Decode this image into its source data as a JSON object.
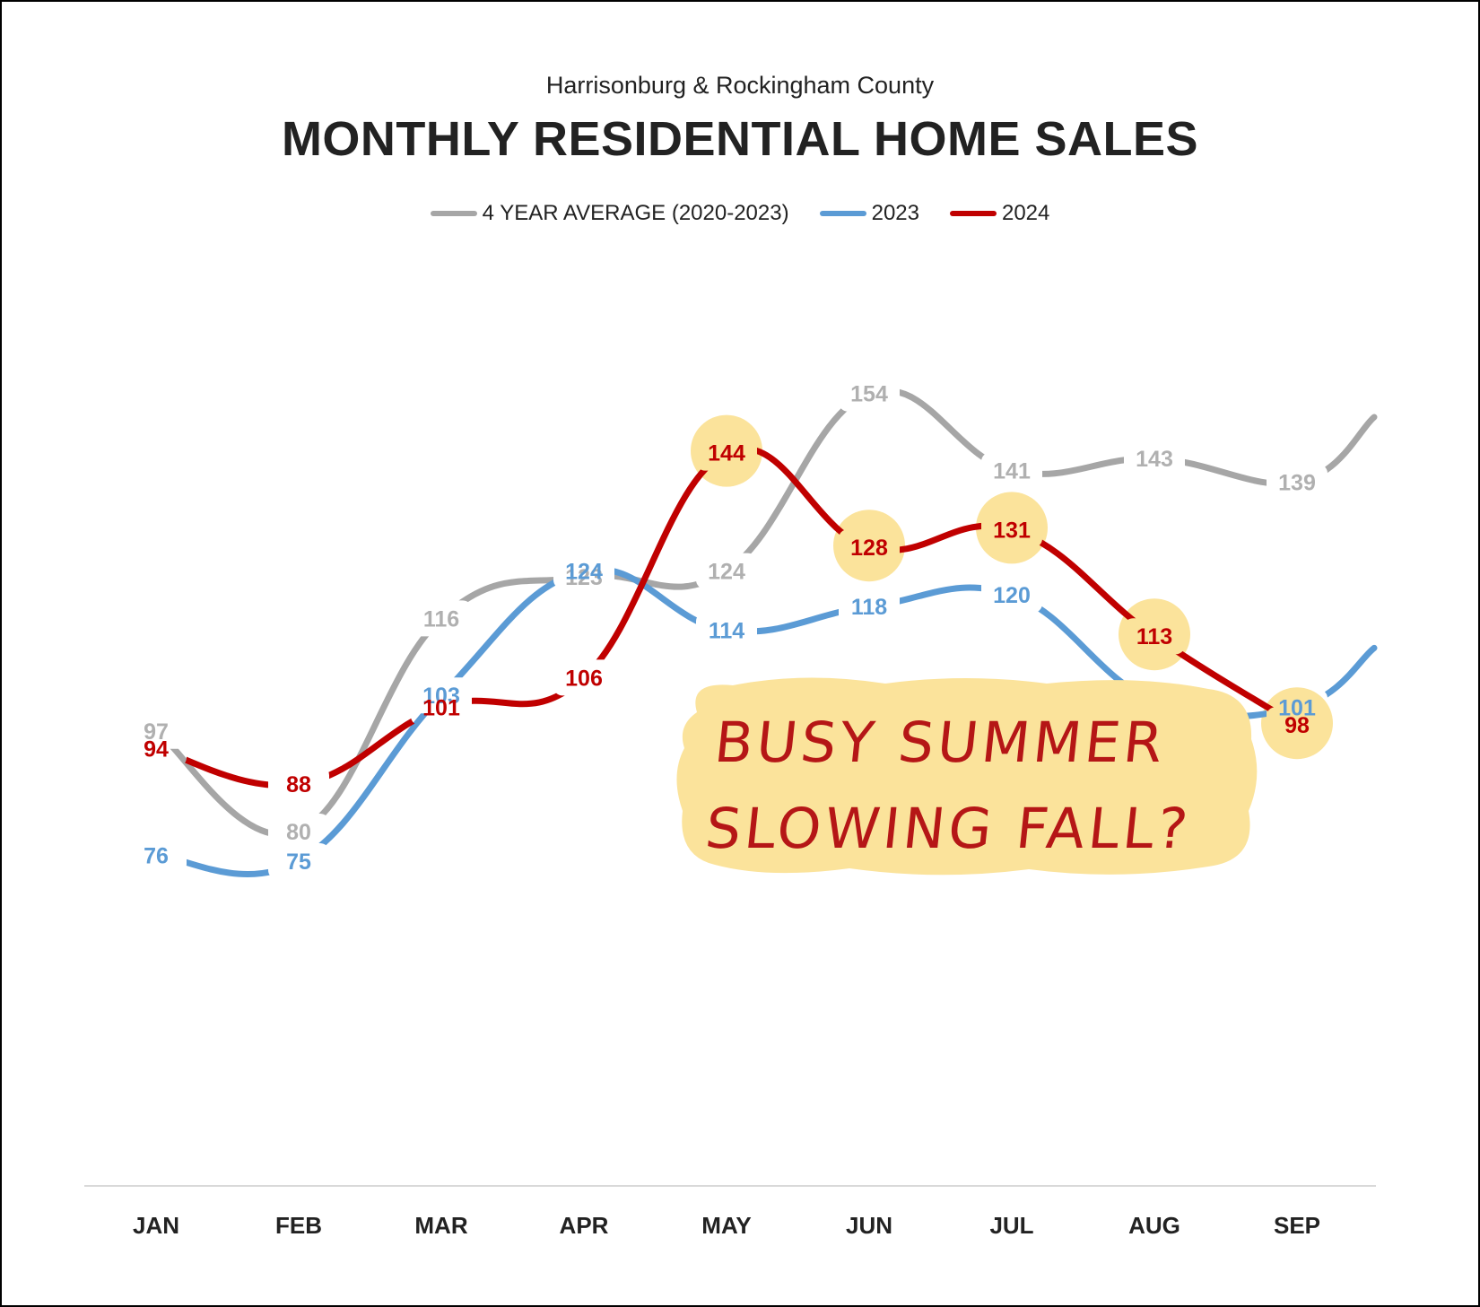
{
  "chart_data": {
    "type": "line",
    "subtitle": "Harrisonburg & Rockingham County",
    "title": "MONTHLY RESIDENTIAL HOME SALES",
    "categories": [
      "JAN",
      "FEB",
      "MAR",
      "APR",
      "MAY",
      "JUN",
      "JUL",
      "AUG",
      "SEP"
    ],
    "series": [
      {
        "name": "4 YEAR AVERAGE (2020-2023)",
        "color": "#a6a6a6",
        "label_color": "#b0b0b0",
        "values": [
          97,
          80,
          116,
          123,
          124,
          154,
          141,
          143,
          139
        ],
        "continues_to": 150
      },
      {
        "name": "2023",
        "color": "#5b9bd5",
        "label_color": "#5b9bd5",
        "values": [
          76,
          75,
          103,
          124,
          114,
          118,
          120,
          102,
          101
        ],
        "continues_to": 111
      },
      {
        "name": "2024",
        "color": "#c00000",
        "label_color": "#c00000",
        "values": [
          94,
          88,
          101,
          106,
          144,
          128,
          131,
          113,
          98
        ]
      }
    ],
    "highlighted_2024_months": [
      "MAY",
      "JUN",
      "JUL",
      "AUG",
      "SEP"
    ],
    "highlight_color": "#fbe39b",
    "legend_position": "top-center",
    "grid": false,
    "annotation": {
      "lines": [
        "BUSY SUMMER",
        "SLOWING FALL?"
      ],
      "color": "#b51616",
      "background": "#fbe39b"
    }
  }
}
